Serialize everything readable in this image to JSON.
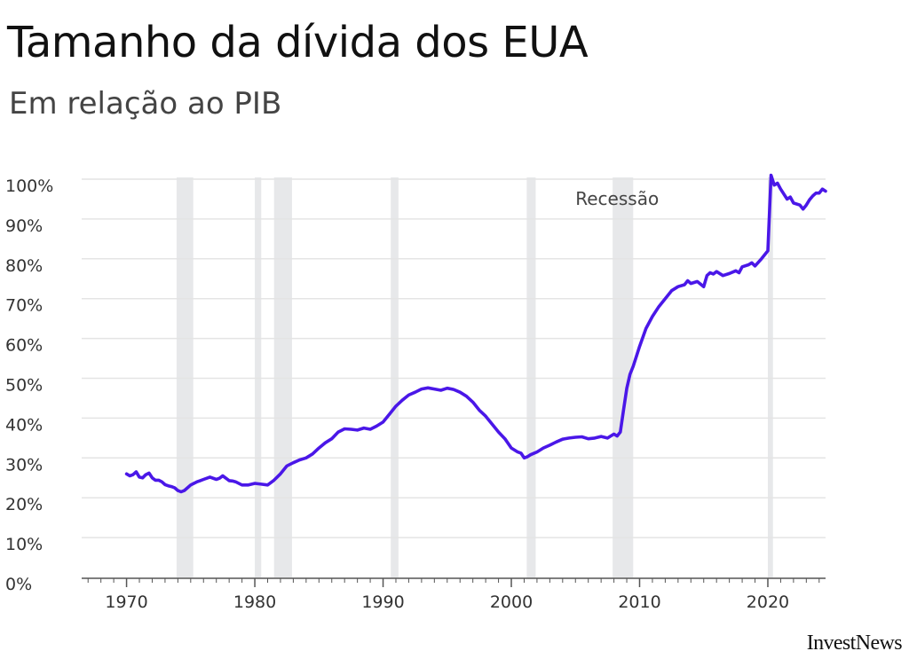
{
  "header": {
    "title": "Tamanho da dívida dos EUA",
    "subtitle": "Em relação ao PIB",
    "brand": "InvestNews"
  },
  "colors": {
    "series": "#4a17e8",
    "recession": "#e7e8ea",
    "grid": "#e4e4e4",
    "axis": "#555555"
  },
  "chart_data": {
    "type": "line",
    "title": "Tamanho da dívida dos EUA",
    "subtitle": "Em relação ao PIB",
    "xlabel": "",
    "ylabel": "",
    "xlim": [
      1966.5,
      2024.5
    ],
    "ylim": [
      0,
      100
    ],
    "grid": "horizontal",
    "x_ticks": [
      1970,
      1980,
      1990,
      2000,
      2010,
      2020
    ],
    "x_tick_labels": [
      "1970",
      "1980",
      "1990",
      "2000",
      "2010",
      "2020"
    ],
    "y_ticks": [
      0,
      10,
      20,
      30,
      40,
      50,
      60,
      70,
      80,
      90,
      100
    ],
    "y_tick_labels": [
      "0%",
      "10%",
      "20%",
      "30%",
      "40%",
      "50%",
      "60%",
      "70%",
      "80%",
      "90%",
      "100%"
    ],
    "annotations": [
      {
        "text": "Recessão",
        "x": 2005.0,
        "y": 93.5
      }
    ],
    "recessions": [
      [
        1973.9,
        1975.2
      ],
      [
        1980.0,
        1980.5
      ],
      [
        1981.5,
        1982.9
      ],
      [
        1990.6,
        1991.2
      ],
      [
        2001.2,
        2001.9
      ],
      [
        2007.9,
        2009.5
      ],
      [
        2020.0,
        2020.4
      ]
    ],
    "series": [
      {
        "values_x": [
          1970.0,
          1970.25,
          1970.5,
          1970.75,
          1971.0,
          1971.25,
          1971.5,
          1971.75,
          1972.0,
          1972.25,
          1972.5,
          1972.75,
          1973.0,
          1973.25,
          1973.5,
          1973.75,
          1974.0,
          1974.25,
          1974.5,
          1974.75,
          1975.0,
          1975.25,
          1975.5,
          1975.75,
          1976.0,
          1976.5,
          1977.0,
          1977.25,
          1977.5,
          1978.0,
          1978.25,
          1978.5,
          1979.0,
          1979.5,
          1980.0,
          1980.5,
          1981.0,
          1981.5,
          1982.0,
          1982.5,
          1983.0,
          1983.5,
          1984.0,
          1984.5,
          1985.0,
          1985.5,
          1986.0,
          1986.5,
          1987.0,
          1987.5,
          1988.0,
          1988.5,
          1989.0,
          1989.5,
          1990.0,
          1990.5,
          1991.0,
          1991.5,
          1992.0,
          1992.5,
          1993.0,
          1993.5,
          1994.0,
          1994.5,
          1995.0,
          1995.5,
          1996.0,
          1996.5,
          1997.0,
          1997.5,
          1998.0,
          1998.5,
          1999.0,
          1999.5,
          2000.0,
          2000.5,
          2000.75,
          2001.0,
          2001.25,
          2001.5,
          2002.0,
          2002.5,
          2003.0,
          2003.5,
          2004.0,
          2004.5,
          2005.0,
          2005.5,
          2006.0,
          2006.5,
          2007.0,
          2007.5,
          2008.0,
          2008.25,
          2008.5,
          2008.75,
          2009.0,
          2009.25,
          2009.5,
          2009.75,
          2010.0,
          2010.5,
          2011.0,
          2011.5,
          2012.0,
          2012.5,
          2013.0,
          2013.5,
          2013.75,
          2014.0,
          2014.5,
          2015.0,
          2015.25,
          2015.5,
          2015.75,
          2016.0,
          2016.5,
          2017.0,
          2017.5,
          2017.75,
          2018.0,
          2018.5,
          2018.75,
          2019.0,
          2019.5,
          2019.75,
          2020.0,
          2020.25,
          2020.5,
          2020.75,
          2021.0,
          2021.5,
          2021.75,
          2022.0,
          2022.5,
          2022.75,
          2023.0,
          2023.25,
          2023.5,
          2023.75,
          2024.0,
          2024.25,
          2024.5
        ],
        "values_y": [
          26.0,
          25.5,
          25.8,
          26.5,
          25.2,
          25.0,
          25.8,
          26.2,
          25.0,
          24.4,
          24.4,
          24.0,
          23.3,
          23.0,
          22.8,
          22.5,
          21.8,
          21.5,
          21.8,
          22.5,
          23.2,
          23.6,
          24.0,
          24.3,
          24.6,
          25.2,
          24.6,
          24.9,
          25.5,
          24.3,
          24.2,
          24.0,
          23.2,
          23.2,
          23.6,
          23.4,
          23.2,
          24.4,
          26.0,
          28.0,
          28.8,
          29.5,
          30.0,
          31.0,
          32.5,
          33.8,
          34.8,
          36.5,
          37.3,
          37.2,
          37.0,
          37.5,
          37.2,
          38.0,
          39.0,
          41.0,
          43.0,
          44.5,
          45.8,
          46.5,
          47.3,
          47.6,
          47.3,
          47.0,
          47.5,
          47.2,
          46.5,
          45.5,
          44.0,
          42.0,
          40.5,
          38.5,
          36.5,
          34.8,
          32.5,
          31.5,
          31.2,
          30.0,
          30.3,
          30.8,
          31.5,
          32.5,
          33.2,
          34.0,
          34.7,
          35.0,
          35.2,
          35.3,
          34.8,
          35.0,
          35.4,
          35.0,
          36.0,
          35.5,
          36.5,
          42.0,
          47.5,
          51.0,
          53.0,
          55.5,
          58.0,
          62.5,
          65.5,
          68.0,
          70.0,
          72.0,
          73.0,
          73.5,
          74.5,
          73.8,
          74.3,
          73.0,
          75.8,
          76.5,
          76.2,
          76.8,
          75.8,
          76.3,
          77.0,
          76.5,
          78.0,
          78.5,
          79.0,
          78.2,
          80.0,
          81.0,
          82.0,
          101.0,
          98.5,
          99.0,
          97.5,
          95.0,
          95.5,
          94.0,
          93.5,
          92.5,
          93.5,
          94.8,
          95.8,
          96.5,
          96.5,
          97.5,
          97.0
        ]
      }
    ]
  }
}
